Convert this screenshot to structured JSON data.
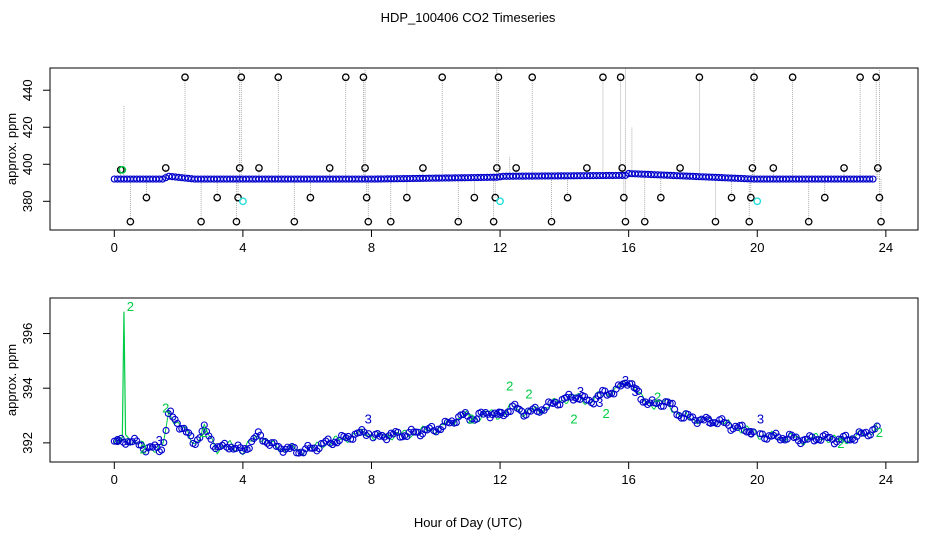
{
  "title": "HDP_100406  CO2 Timeseries",
  "xlabel": "Hour of Day (UTC)",
  "colors": {
    "raw": "#000000",
    "spike": "#00cc44",
    "cal": "#22dddd",
    "filtered": "#0000cc",
    "line": "#999999"
  },
  "chart_data": [
    {
      "type": "scatter",
      "title": "",
      "xlabel": "",
      "ylabel": "approx. ppm",
      "xlim": [
        -2.0,
        25.0
      ],
      "ylim": [
        364.5,
        452
      ],
      "xticks": [
        0,
        4,
        8,
        12,
        16,
        20,
        24
      ],
      "yticks": [
        380,
        400,
        420,
        440
      ],
      "baseline": {
        "x": [
          0,
          1.5,
          1.7,
          2.5,
          3.9,
          4.1,
          7.8,
          8.1,
          11.9,
          12.1,
          15.9,
          16.0,
          19.9,
          20.1,
          23.7
        ],
        "y": [
          392,
          392,
          393.5,
          392,
          392,
          392,
          392,
          392,
          393,
          393.5,
          394,
          395,
          392,
          392,
          392
        ]
      },
      "outliers": [
        [
          0.2,
          397
        ],
        [
          0.5,
          369
        ],
        [
          1.0,
          382
        ],
        [
          1.6,
          398
        ],
        [
          2.2,
          447
        ],
        [
          2.7,
          369
        ],
        [
          3.2,
          382
        ],
        [
          3.8,
          369
        ],
        [
          3.85,
          382
        ],
        [
          3.9,
          398
        ],
        [
          3.95,
          447
        ],
        [
          4.5,
          398
        ],
        [
          5.1,
          447
        ],
        [
          5.6,
          369
        ],
        [
          6.1,
          382
        ],
        [
          6.7,
          398
        ],
        [
          7.2,
          447
        ],
        [
          7.75,
          447
        ],
        [
          7.8,
          398
        ],
        [
          7.85,
          382
        ],
        [
          7.9,
          369
        ],
        [
          8.6,
          369
        ],
        [
          9.1,
          382
        ],
        [
          9.6,
          398
        ],
        [
          10.2,
          447
        ],
        [
          10.7,
          369
        ],
        [
          11.2,
          382
        ],
        [
          11.8,
          369
        ],
        [
          11.85,
          382
        ],
        [
          11.9,
          398
        ],
        [
          11.95,
          447
        ],
        [
          12.5,
          398
        ],
        [
          13.0,
          447
        ],
        [
          13.6,
          369
        ],
        [
          14.1,
          382
        ],
        [
          14.7,
          398
        ],
        [
          15.2,
          447
        ],
        [
          15.75,
          447
        ],
        [
          15.8,
          398
        ],
        [
          15.85,
          382
        ],
        [
          15.9,
          369
        ],
        [
          16.5,
          369
        ],
        [
          17.0,
          382
        ],
        [
          17.6,
          398
        ],
        [
          18.2,
          447
        ],
        [
          18.7,
          369
        ],
        [
          19.2,
          382
        ],
        [
          19.75,
          369
        ],
        [
          19.8,
          382
        ],
        [
          19.85,
          398
        ],
        [
          19.9,
          447
        ],
        [
          20.5,
          398
        ],
        [
          21.1,
          447
        ],
        [
          21.6,
          369
        ],
        [
          22.1,
          382
        ],
        [
          22.7,
          398
        ],
        [
          23.2,
          447
        ],
        [
          23.7,
          447
        ],
        [
          23.75,
          398
        ],
        [
          23.8,
          382
        ],
        [
          23.85,
          369
        ]
      ],
      "spikes": [
        [
          0.3,
          432
        ],
        [
          3.9,
          452
        ],
        [
          7.8,
          452
        ],
        [
          11.9,
          452
        ],
        [
          12.3,
          404
        ],
        [
          15.9,
          452
        ],
        [
          16.1,
          420
        ],
        [
          19.9,
          452
        ],
        [
          23.8,
          452
        ]
      ],
      "calibration_points": [
        [
          4.0,
          380
        ],
        [
          12.0,
          380
        ],
        [
          20.0,
          380
        ]
      ],
      "spike_marker": [
        0.25,
        397
      ]
    },
    {
      "type": "line",
      "title": "",
      "xlabel": "Hour of Day (UTC)",
      "ylabel": "approx. ppm",
      "xlim": [
        -2.0,
        25.0
      ],
      "ylim": [
        391.3,
        397.3
      ],
      "xticks": [
        0,
        4,
        8,
        12,
        16,
        20,
        24
      ],
      "yticks": [
        392,
        394,
        396
      ],
      "series": [
        {
          "x": [
            0,
            0.5,
            1,
            1.5,
            1.7,
            2.0,
            2.5,
            2.8,
            3.2,
            3.6,
            4.0,
            4.5,
            4.9,
            5.3,
            5.8,
            6.2,
            6.6,
            7.0,
            7.5,
            7.9,
            8.1,
            8.6,
            9.0,
            9.5,
            10.0,
            10.4,
            10.8,
            11.2,
            11.6,
            12.0,
            12.4,
            12.8,
            13.2,
            13.6,
            14.0,
            14.4,
            14.8,
            15.2,
            15.6,
            16.0,
            16.4,
            16.8,
            17.2,
            17.6,
            18.0,
            18.4,
            18.8,
            19.2,
            19.6,
            19.9,
            20.1,
            20.6,
            21.0,
            21.5,
            22.0,
            22.5,
            23.0,
            23.5,
            23.8
          ],
          "y": [
            392.0,
            392.1,
            391.8,
            391.8,
            393.1,
            392.7,
            392.0,
            392.5,
            391.8,
            391.9,
            391.7,
            392.3,
            391.9,
            391.8,
            391.7,
            391.8,
            392.0,
            392.1,
            392.3,
            392.4,
            392.2,
            392.3,
            392.3,
            392.4,
            392.5,
            392.7,
            393.0,
            392.9,
            393.1,
            393.0,
            393.3,
            393.1,
            393.2,
            393.4,
            393.6,
            393.7,
            393.5,
            393.8,
            393.9,
            394.3,
            393.6,
            393.4,
            393.5,
            393.0,
            392.9,
            392.8,
            392.8,
            392.6,
            392.5,
            392.4,
            392.3,
            392.2,
            392.2,
            392.1,
            392.2,
            392.1,
            392.2,
            392.4,
            392.6
          ]
        }
      ],
      "labels_2": [
        [
          0.5,
          397.0
        ],
        [
          1.6,
          393.3
        ],
        [
          12.3,
          394.1
        ],
        [
          12.9,
          393.8
        ],
        [
          15.3,
          393.1
        ],
        [
          16.9,
          393.7
        ],
        [
          0.9,
          391.8
        ],
        [
          2.8,
          392.4
        ],
        [
          11.1,
          392.9
        ],
        [
          14.3,
          392.9
        ],
        [
          22.6,
          392.0
        ],
        [
          23.8,
          392.4
        ]
      ],
      "labels_3": [
        [
          0.1,
          392.1
        ],
        [
          1.4,
          392.1
        ],
        [
          7.9,
          392.9
        ],
        [
          12.0,
          393.1
        ],
        [
          14.5,
          393.9
        ],
        [
          15.1,
          393.5
        ],
        [
          15.9,
          394.3
        ],
        [
          16.2,
          393.9
        ],
        [
          18.5,
          392.8
        ],
        [
          19.8,
          392.4
        ],
        [
          20.1,
          392.9
        ]
      ]
    }
  ]
}
